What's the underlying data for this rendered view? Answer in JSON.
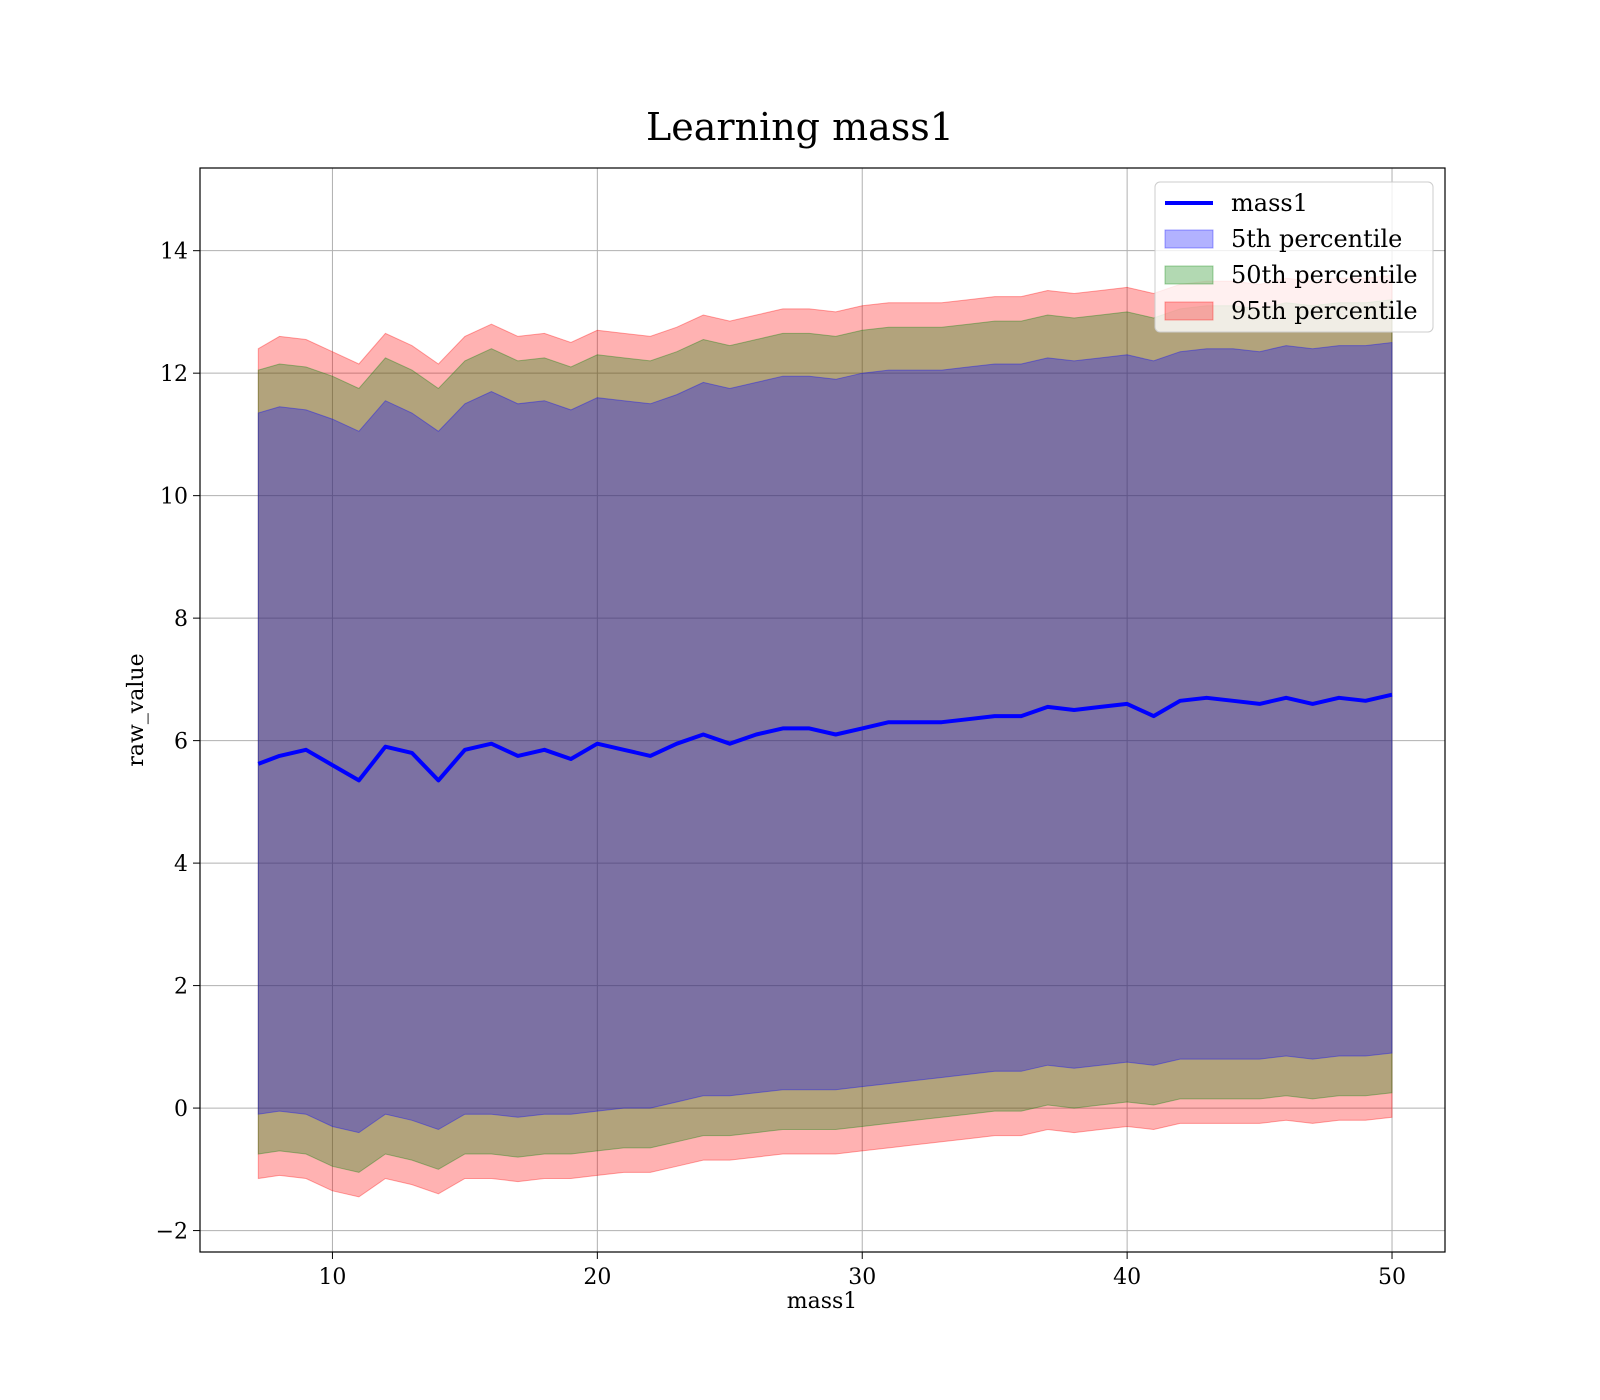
{
  "chart_data": {
    "type": "line",
    "title": "Learning mass1",
    "xlabel": "mass1",
    "ylabel": "raw_value",
    "xlim": [
      5,
      52
    ],
    "ylim": [
      -2.35,
      15.35
    ],
    "xticks": [
      10,
      20,
      30,
      40,
      50
    ],
    "yticks": [
      -2,
      0,
      2,
      4,
      6,
      8,
      10,
      12,
      14
    ],
    "xtick_labels": [
      "10",
      "20",
      "30",
      "40",
      "50"
    ],
    "ytick_labels": [
      "−2",
      "0",
      "2",
      "4",
      "6",
      "8",
      "10",
      "12",
      "14"
    ],
    "grid": true,
    "legend_position": "top-right",
    "x": [
      7.2,
      8,
      9,
      10,
      11,
      12,
      13,
      14,
      15,
      16,
      17,
      18,
      19,
      20,
      21,
      22,
      23,
      24,
      25,
      26,
      27,
      28,
      29,
      30,
      31,
      32,
      33,
      34,
      35,
      36,
      37,
      38,
      39,
      40,
      41,
      42,
      43,
      44,
      45,
      46,
      47,
      48,
      49,
      50
    ],
    "series": [
      {
        "name": "mass1",
        "kind": "line",
        "color": "#0000ff",
        "values": [
          5.62,
          5.75,
          5.85,
          5.6,
          5.35,
          5.9,
          5.8,
          5.35,
          5.85,
          5.95,
          5.75,
          5.85,
          5.7,
          5.95,
          5.85,
          5.75,
          5.95,
          6.1,
          5.95,
          6.1,
          6.2,
          6.2,
          6.1,
          6.2,
          6.3,
          6.3,
          6.3,
          6.35,
          6.4,
          6.4,
          6.55,
          6.5,
          6.55,
          6.6,
          6.4,
          6.65,
          6.7,
          6.65,
          6.6,
          6.7,
          6.6,
          6.7,
          6.65,
          6.75
        ]
      },
      {
        "name": "5th percentile",
        "kind": "band",
        "color": "#0000ff",
        "lower": [
          -0.1,
          -0.05,
          -0.1,
          -0.3,
          -0.4,
          -0.1,
          -0.2,
          -0.35,
          -0.1,
          -0.1,
          -0.15,
          -0.1,
          -0.1,
          -0.05,
          0.0,
          0.0,
          0.1,
          0.2,
          0.2,
          0.25,
          0.3,
          0.3,
          0.3,
          0.35,
          0.4,
          0.45,
          0.5,
          0.55,
          0.6,
          0.6,
          0.7,
          0.65,
          0.7,
          0.75,
          0.7,
          0.8,
          0.8,
          0.8,
          0.8,
          0.85,
          0.8,
          0.85,
          0.85,
          0.9
        ],
        "upper": [
          11.35,
          11.45,
          11.4,
          11.25,
          11.05,
          11.55,
          11.35,
          11.05,
          11.5,
          11.7,
          11.5,
          11.55,
          11.4,
          11.6,
          11.55,
          11.5,
          11.65,
          11.85,
          11.75,
          11.85,
          11.95,
          11.95,
          11.9,
          12.0,
          12.05,
          12.05,
          12.05,
          12.1,
          12.15,
          12.15,
          12.25,
          12.2,
          12.25,
          12.3,
          12.2,
          12.35,
          12.4,
          12.4,
          12.35,
          12.45,
          12.4,
          12.45,
          12.45,
          12.5
        ]
      },
      {
        "name": "50th percentile",
        "kind": "band",
        "color": "#008000",
        "lower": [
          -0.75,
          -0.7,
          -0.75,
          -0.95,
          -1.05,
          -0.75,
          -0.85,
          -1.0,
          -0.75,
          -0.75,
          -0.8,
          -0.75,
          -0.75,
          -0.7,
          -0.65,
          -0.65,
          -0.55,
          -0.45,
          -0.45,
          -0.4,
          -0.35,
          -0.35,
          -0.35,
          -0.3,
          -0.25,
          -0.2,
          -0.15,
          -0.1,
          -0.05,
          -0.05,
          0.05,
          0.0,
          0.05,
          0.1,
          0.05,
          0.15,
          0.15,
          0.15,
          0.15,
          0.2,
          0.15,
          0.2,
          0.2,
          0.25
        ],
        "upper": [
          12.05,
          12.15,
          12.1,
          11.95,
          11.75,
          12.25,
          12.05,
          11.75,
          12.2,
          12.4,
          12.2,
          12.25,
          12.1,
          12.3,
          12.25,
          12.2,
          12.35,
          12.55,
          12.45,
          12.55,
          12.65,
          12.65,
          12.6,
          12.7,
          12.75,
          12.75,
          12.75,
          12.8,
          12.85,
          12.85,
          12.95,
          12.9,
          12.95,
          13.0,
          12.9,
          13.05,
          13.1,
          13.1,
          13.05,
          13.15,
          13.1,
          13.15,
          13.15,
          13.2
        ]
      },
      {
        "name": "95th percentile",
        "kind": "band",
        "color": "#ff0000",
        "lower": [
          -1.15,
          -1.1,
          -1.15,
          -1.35,
          -1.45,
          -1.15,
          -1.25,
          -1.4,
          -1.15,
          -1.15,
          -1.2,
          -1.15,
          -1.15,
          -1.1,
          -1.05,
          -1.05,
          -0.95,
          -0.85,
          -0.85,
          -0.8,
          -0.75,
          -0.75,
          -0.75,
          -0.7,
          -0.65,
          -0.6,
          -0.55,
          -0.5,
          -0.45,
          -0.45,
          -0.35,
          -0.4,
          -0.35,
          -0.3,
          -0.35,
          -0.25,
          -0.25,
          -0.25,
          -0.25,
          -0.2,
          -0.25,
          -0.2,
          -0.2,
          -0.15
        ],
        "upper": [
          12.4,
          12.6,
          12.55,
          12.35,
          12.15,
          12.65,
          12.45,
          12.15,
          12.6,
          12.8,
          12.6,
          12.65,
          12.5,
          12.7,
          12.65,
          12.6,
          12.75,
          12.95,
          12.85,
          12.95,
          13.05,
          13.05,
          13.0,
          13.1,
          13.15,
          13.15,
          13.15,
          13.2,
          13.25,
          13.25,
          13.35,
          13.3,
          13.35,
          13.4,
          13.3,
          13.45,
          13.5,
          13.5,
          13.45,
          13.55,
          13.5,
          13.55,
          13.55,
          13.6
        ]
      }
    ]
  }
}
